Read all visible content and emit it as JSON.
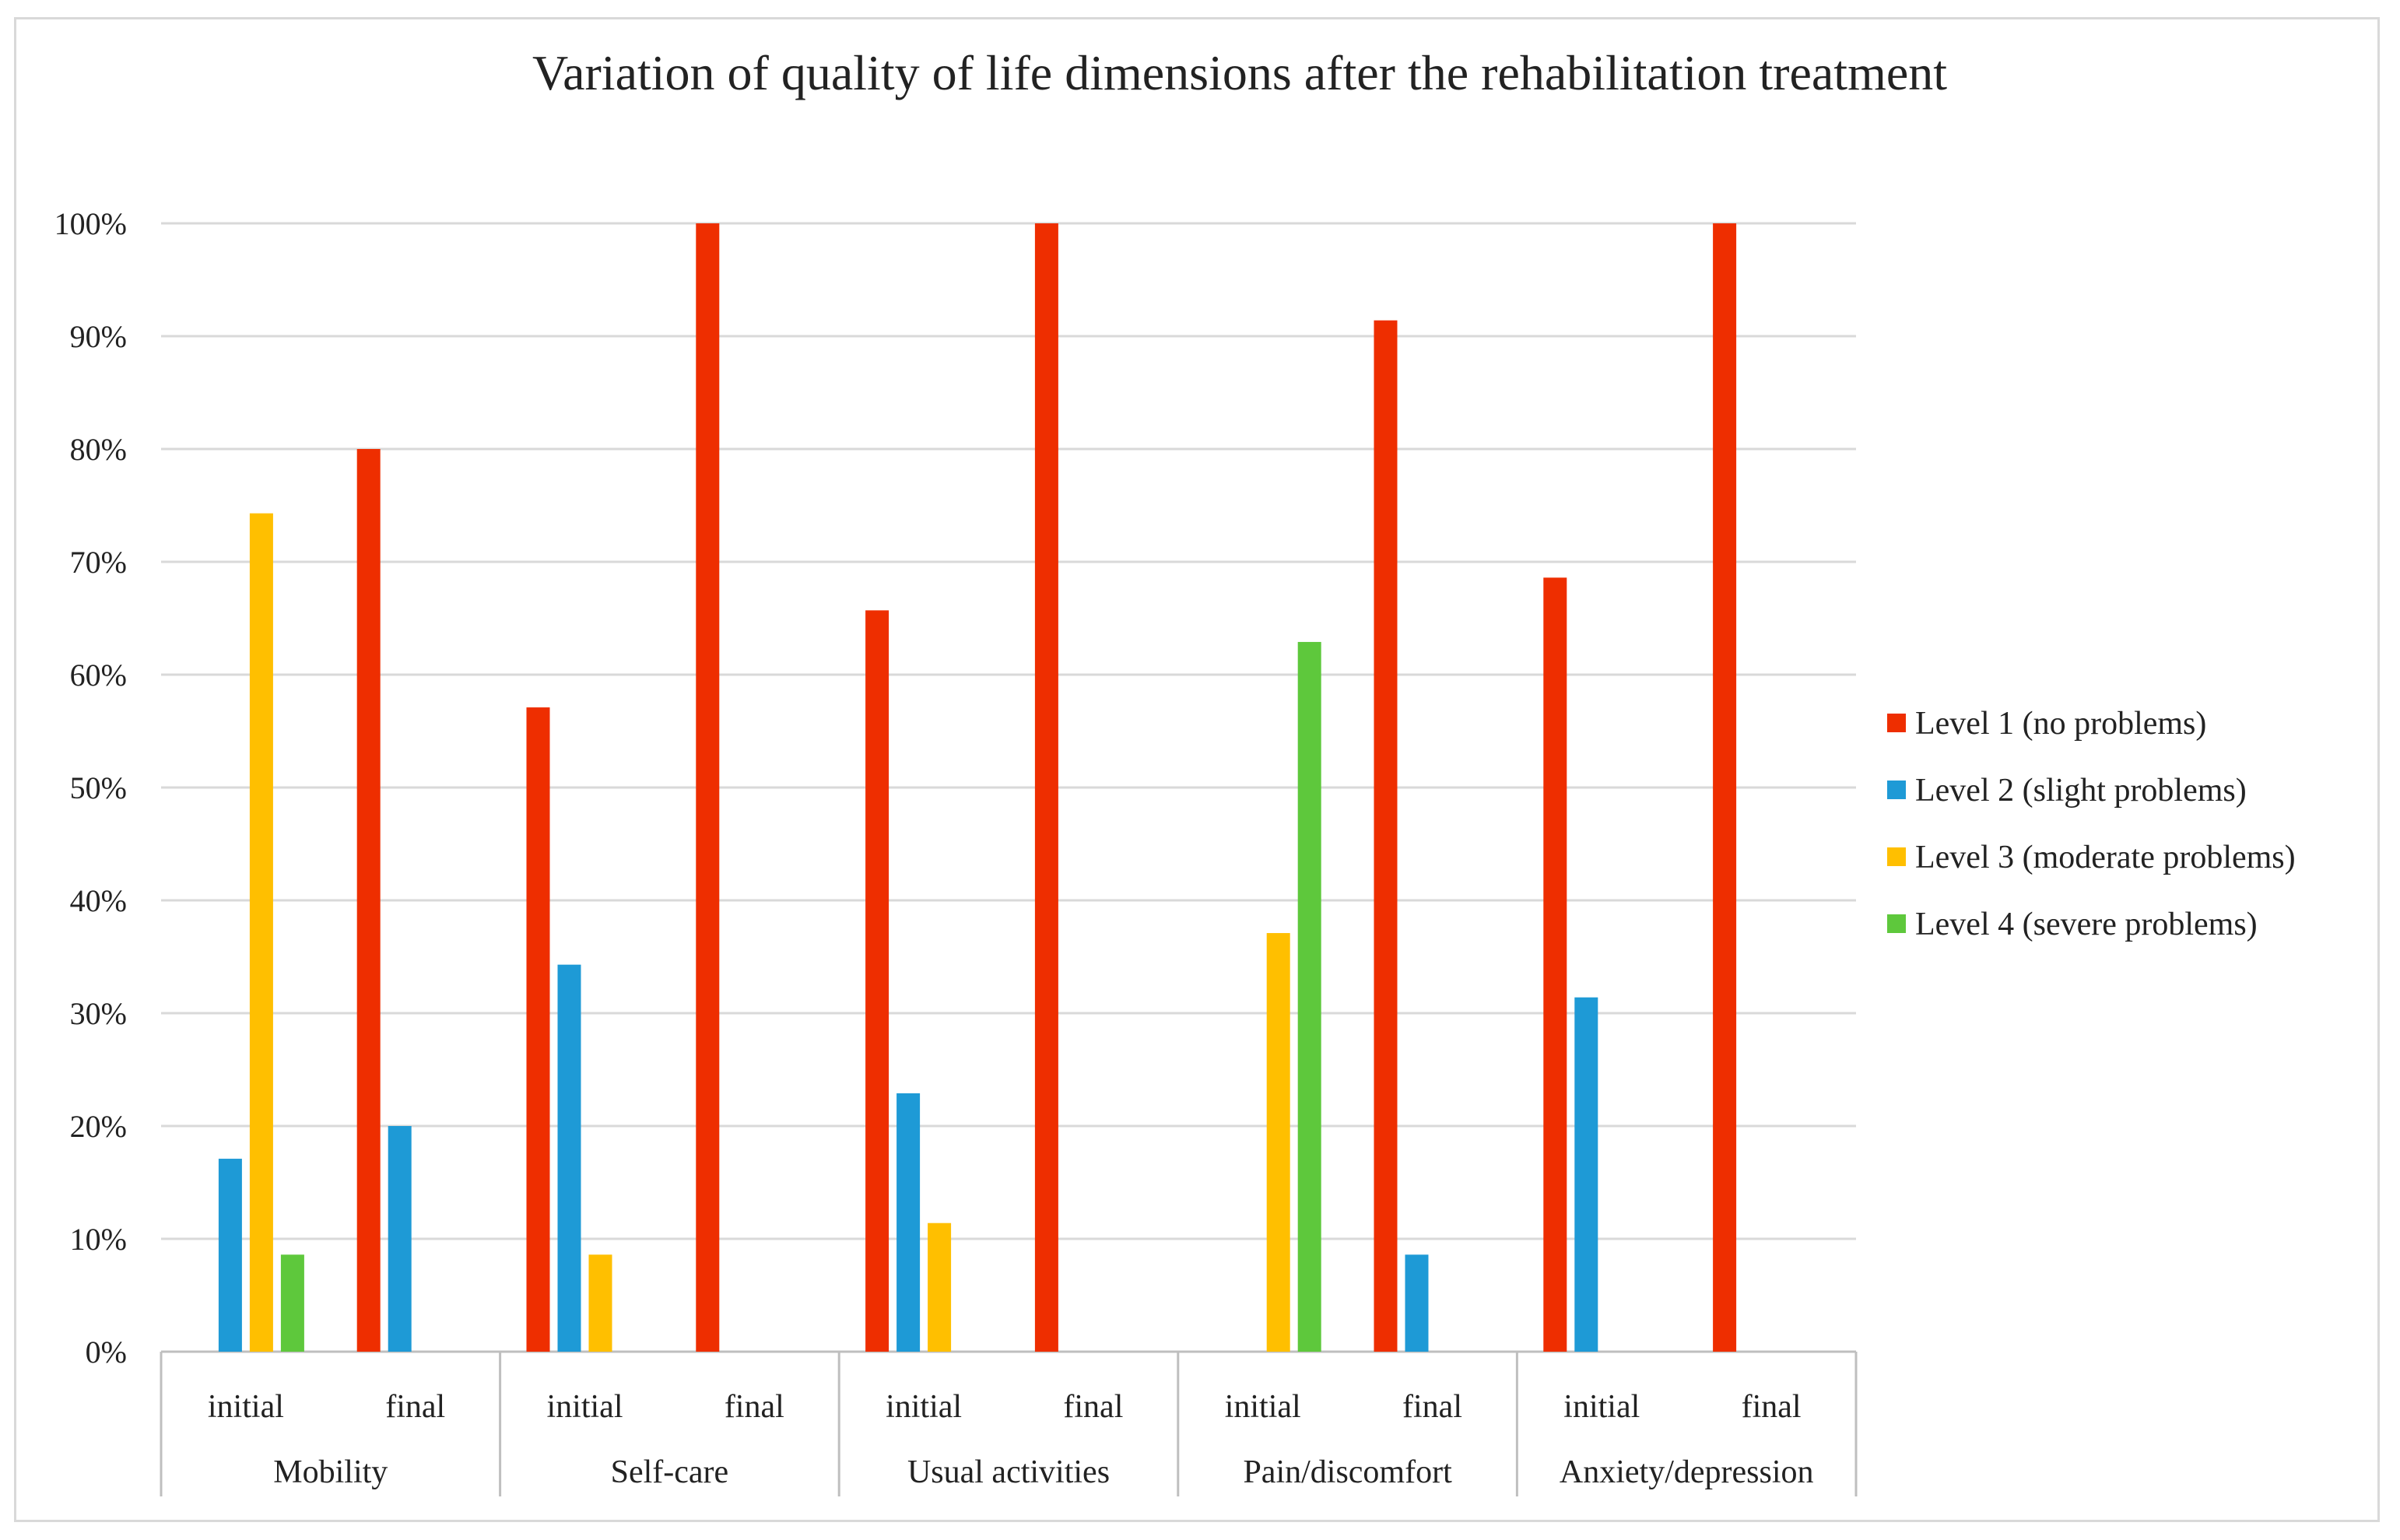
{
  "chart_data": {
    "type": "bar",
    "title": "Variation of quality of life dimensions after the rehabilitation treatment",
    "xlabel": "",
    "ylabel": "",
    "ylim": [
      0,
      100
    ],
    "yticks": [
      "0%",
      "10%",
      "20%",
      "30%",
      "40%",
      "50%",
      "60%",
      "70%",
      "80%",
      "90%",
      "100%"
    ],
    "grid": true,
    "legend_position": "right",
    "groups": [
      "Mobility",
      "Self-care",
      "Usual activities",
      "Pain/discomfort",
      "Anxiety/depression"
    ],
    "subcategories": [
      "initial",
      "final"
    ],
    "categories": [
      "Mobility initial",
      "Mobility final",
      "Self-care initial",
      "Self-care final",
      "Usual activities initial",
      "Usual activities final",
      "Pain/discomfort initial",
      "Pain/discomfort final",
      "Anxiety/depression initial",
      "Anxiety/depression final"
    ],
    "series": [
      {
        "name": "Level 1 (no problems)",
        "color": "#ee2e00",
        "values": [
          0,
          80,
          57.1,
          100,
          65.7,
          100,
          0,
          91.4,
          68.6,
          100
        ]
      },
      {
        "name": "Level 2 (slight problems)",
        "color": "#1e9ad6",
        "values": [
          17.1,
          20,
          34.3,
          0,
          22.9,
          0,
          0,
          8.6,
          31.4,
          0
        ]
      },
      {
        "name": "Level 3 (moderate problems)",
        "color": "#ffbf00",
        "values": [
          74.3,
          0,
          8.6,
          0,
          11.4,
          0,
          37.1,
          0,
          0,
          0
        ]
      },
      {
        "name": "Level 4 (severe problems)",
        "color": "#5ec83c",
        "values": [
          8.6,
          0,
          0,
          0,
          0,
          0,
          62.9,
          0,
          0,
          0
        ]
      }
    ]
  }
}
